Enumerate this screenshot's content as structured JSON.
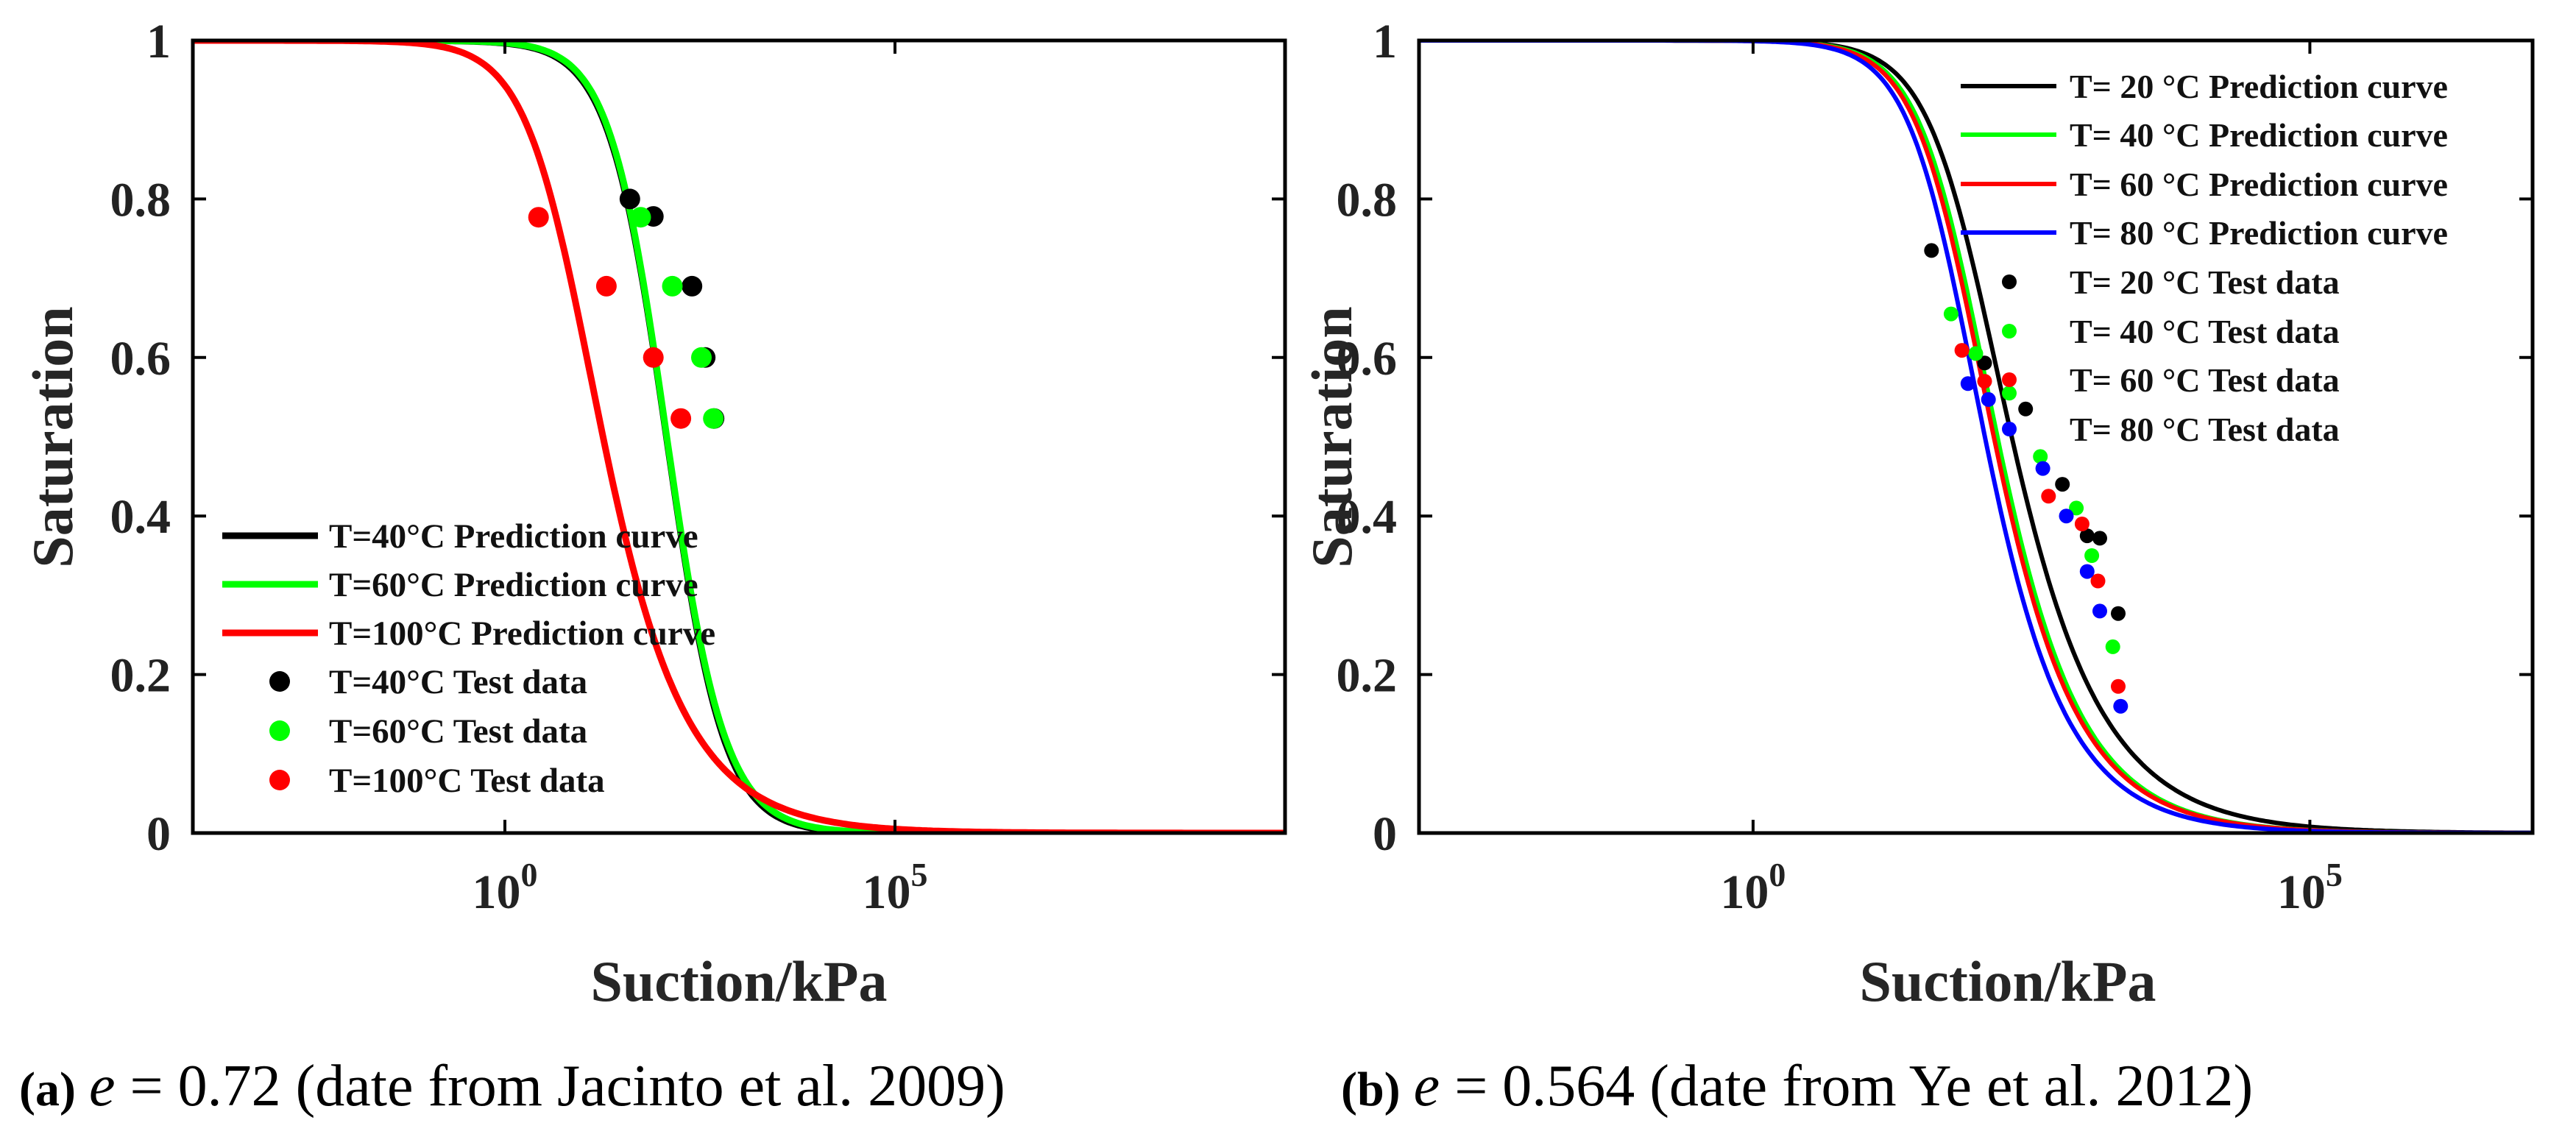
{
  "chart_data": [
    {
      "panel": "a",
      "type": "line",
      "xscale": "log",
      "xlim": [
        0.0001,
        10000000000
      ],
      "ylim": [
        0,
        1
      ],
      "xlabel": "Suction/kPa",
      "ylabel": "Saturation",
      "x_ticks": [
        {
          "base": "10",
          "exp": "0"
        },
        {
          "base": "10",
          "exp": "5"
        }
      ],
      "x_tick_values": [
        1,
        100000
      ],
      "y_ticks": [
        "0",
        "0.2",
        "0.4",
        "0.6",
        "0.8",
        "1"
      ],
      "y_tick_values": [
        0,
        0.2,
        0.4,
        0.6,
        0.8,
        1
      ],
      "legend_position": "bottom-left",
      "series": [
        {
          "name": "T=40°C Prediction curve",
          "kind": "curve",
          "color": "#000000",
          "a": 0.0085,
          "n": 1.18,
          "m": 1.0
        },
        {
          "name": "T=60°C Prediction curve",
          "kind": "curve",
          "color": "#00ff00",
          "a": 0.0095,
          "n": 1.22,
          "m": 0.9
        },
        {
          "name": "T=100°C Prediction curve",
          "kind": "curve",
          "color": "#ff0000",
          "a": 0.15,
          "n": 1.1,
          "m": 0.5
        },
        {
          "name": "T=40°C Test data",
          "kind": "points",
          "color": "#000000",
          "x": [
            40,
            80,
            250,
            370,
            480
          ],
          "y": [
            0.8,
            0.778,
            0.69,
            0.6,
            0.523
          ]
        },
        {
          "name": "T=60°C Test data",
          "kind": "points",
          "color": "#00ff00",
          "x": [
            55,
            140,
            330,
            470
          ],
          "y": [
            0.777,
            0.69,
            0.6,
            0.523
          ]
        },
        {
          "name": "T=100°C Test data",
          "kind": "points",
          "color": "#ff0000",
          "x": [
            2.7,
            20,
            80,
            180
          ],
          "y": [
            0.777,
            0.69,
            0.6,
            0.523
          ]
        }
      ]
    },
    {
      "panel": "b",
      "type": "line",
      "xscale": "log",
      "xlim": [
        0.001,
        10000000
      ],
      "ylim": [
        0,
        1
      ],
      "xlabel": "Suction/kPa",
      "ylabel": "Saturation",
      "x_ticks": [
        {
          "base": "10",
          "exp": "0"
        },
        {
          "base": "10",
          "exp": "5"
        }
      ],
      "x_tick_values": [
        1,
        100000
      ],
      "y_ticks": [
        "0",
        "0.2",
        "0.4",
        "0.6",
        "0.8",
        "1"
      ],
      "y_tick_values": [
        0,
        0.2,
        0.4,
        0.6,
        0.8,
        1
      ],
      "legend_position": "top-right",
      "series": [
        {
          "name": "T= 20 °C Prediction curve",
          "kind": "curve",
          "color": "#000000",
          "a": 0.011,
          "n": 1.5,
          "m": 0.46
        },
        {
          "name": "T= 40 °C Prediction curve",
          "kind": "curve",
          "color": "#00ff00",
          "a": 0.013,
          "n": 1.55,
          "m": 0.5
        },
        {
          "name": "T= 60 °C Prediction curve",
          "kind": "curve",
          "color": "#ff0000",
          "a": 0.014,
          "n": 1.55,
          "m": 0.5
        },
        {
          "name": "T= 80 °C Prediction curve",
          "kind": "curve",
          "color": "#0000ff",
          "a": 0.016,
          "n": 1.56,
          "m": 0.52
        },
        {
          "name": "T= 20 °C Test data",
          "kind": "points",
          "color": "#000000",
          "x": [
            40,
            120,
            280,
            600,
            1000,
            1300,
            1900
          ],
          "y": [
            0.735,
            0.593,
            0.535,
            0.44,
            0.375,
            0.372,
            0.277
          ]
        },
        {
          "name": "T= 40 °C Test data",
          "kind": "points",
          "color": "#00ff00",
          "x": [
            60,
            100,
            200,
            380,
            800,
            1100,
            1700
          ],
          "y": [
            0.655,
            0.605,
            0.555,
            0.475,
            0.41,
            0.35,
            0.235
          ]
        },
        {
          "name": "T= 60 °C Test data",
          "kind": "points",
          "color": "#ff0000",
          "x": [
            75,
            120,
            450,
            900,
            1250,
            1900
          ],
          "y": [
            0.609,
            0.57,
            0.425,
            0.39,
            0.318,
            0.185
          ]
        },
        {
          "name": "T= 80 °C Test data",
          "kind": "points",
          "color": "#0000ff",
          "x": [
            85,
            130,
            400,
            650,
            1000,
            1300,
            2000
          ],
          "y": [
            0.567,
            0.547,
            0.46,
            0.4,
            0.33,
            0.28,
            0.16
          ]
        }
      ]
    }
  ],
  "captions": [
    {
      "label": "(a)",
      "var": "e",
      "text": " = 0.72 (date from Jacinto et al. 2009)"
    },
    {
      "label": "(b)",
      "var": "e",
      "text": " = 0.564 (date from Ye et al. 2012)"
    }
  ]
}
